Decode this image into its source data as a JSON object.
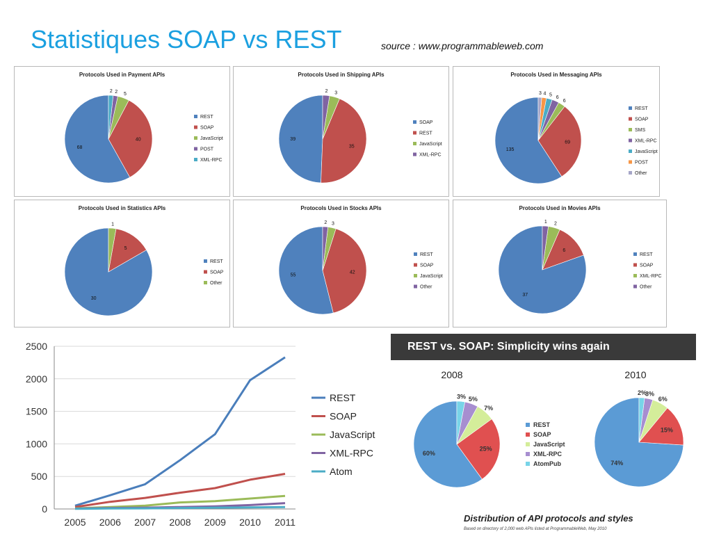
{
  "header": {
    "title": "Statistiques SOAP vs REST",
    "source": "source : www.programmableweb.com"
  },
  "colors": {
    "REST": "#4f81bd",
    "SOAP": "#c0504d",
    "JavaScript": "#9bbb59",
    "POST": "#8064a2",
    "XML-RPC": "#4bacc6",
    "SMS": "#9bbb59",
    "Other": "#a6a6c8",
    "AtomPub": "#4bacc6"
  },
  "banner": {
    "text": "REST vs. SOAP: Simplicity wins again"
  },
  "footer": {
    "caption": "Distribution of API protocols and styles",
    "note": "Based on directory of 2,000 web APIs listed at ProgrammableWeb, May 2010"
  },
  "chart_data": [
    {
      "type": "pie",
      "title": "Protocols Used in Payment APIs",
      "labels": [
        "REST",
        "SOAP",
        "JavaScript",
        "POST",
        "XML-RPC"
      ],
      "values": [
        68,
        40,
        5,
        2,
        2
      ],
      "colors": [
        "#4f81bd",
        "#c0504d",
        "#9bbb59",
        "#8064a2",
        "#4bacc6"
      ]
    },
    {
      "type": "pie",
      "title": "Protocols Used in Shipping APIs",
      "labels": [
        "SOAP",
        "REST",
        "JavaScript",
        "XML-RPC"
      ],
      "values": [
        39,
        35,
        3,
        2
      ],
      "colors": [
        "#4f81bd",
        "#c0504d",
        "#9bbb59",
        "#8064a2"
      ]
    },
    {
      "type": "pie",
      "title": "Protocols Used in Messaging APIs",
      "labels": [
        "REST",
        "SOAP",
        "SMS",
        "XML-RPC",
        "JavaScript",
        "POST",
        "Other"
      ],
      "values": [
        135,
        69,
        6,
        6,
        5,
        4,
        3
      ],
      "colors": [
        "#4f81bd",
        "#c0504d",
        "#9bbb59",
        "#8064a2",
        "#4bacc6",
        "#f79646",
        "#a6a6c8"
      ]
    },
    {
      "type": "pie",
      "title": "Protocols Used in Statistics APIs",
      "labels": [
        "REST",
        "SOAP",
        "Other"
      ],
      "values": [
        30,
        5,
        1
      ],
      "colors": [
        "#4f81bd",
        "#c0504d",
        "#9bbb59"
      ]
    },
    {
      "type": "pie",
      "title": "Protocols Used in Stocks APIs",
      "labels": [
        "REST",
        "SOAP",
        "JavaScript",
        "Other"
      ],
      "values": [
        55,
        42,
        3,
        2
      ],
      "colors": [
        "#4f81bd",
        "#c0504d",
        "#9bbb59",
        "#8064a2"
      ]
    },
    {
      "type": "pie",
      "title": "Protocols Used in Movies APIs",
      "labels": [
        "REST",
        "SOAP",
        "XML-RPC",
        "Other"
      ],
      "values": [
        37,
        6,
        2,
        1
      ],
      "colors": [
        "#4f81bd",
        "#c0504d",
        "#9bbb59",
        "#8064a2"
      ]
    },
    {
      "type": "line",
      "x": [
        2005,
        2006,
        2007,
        2008,
        2009,
        2010,
        2011
      ],
      "series": [
        {
          "name": "REST",
          "color": "#4a7ebb",
          "values": [
            50,
            210,
            380,
            750,
            1150,
            1980,
            2330
          ]
        },
        {
          "name": "SOAP",
          "color": "#c0504d",
          "values": [
            30,
            110,
            170,
            250,
            320,
            450,
            540
          ]
        },
        {
          "name": "JavaScript",
          "color": "#9bbb59",
          "values": [
            10,
            30,
            50,
            100,
            120,
            160,
            200
          ]
        },
        {
          "name": "XML-RPC",
          "color": "#8064a2",
          "values": [
            5,
            15,
            20,
            30,
            40,
            60,
            90
          ]
        },
        {
          "name": "Atom",
          "color": "#4bacc6",
          "values": [
            2,
            8,
            10,
            15,
            20,
            25,
            30
          ]
        }
      ],
      "ylim": [
        0,
        2500
      ],
      "yticks": [
        0,
        500,
        1000,
        1500,
        2000,
        2500
      ],
      "grid": true,
      "legend": "right"
    },
    {
      "type": "pie",
      "title": "2008",
      "labels": [
        "REST",
        "SOAP",
        "JavaScript",
        "XML-RPC",
        "AtomPub"
      ],
      "values": [
        60,
        25,
        7,
        5,
        3
      ],
      "display": [
        "60%",
        "25%",
        "7%",
        "5%",
        "3%"
      ],
      "colors": [
        "#5b9bd5",
        "#e05050",
        "#d4ed9a",
        "#a78ed0",
        "#78d4e8"
      ]
    },
    {
      "type": "pie",
      "title": "2010",
      "labels": [
        "REST",
        "SOAP",
        "JavaScript",
        "XML-RPC",
        "AtomPub"
      ],
      "values": [
        74,
        15,
        6,
        3,
        2
      ],
      "display": [
        "74%",
        "15%",
        "6%",
        "3%",
        "2%"
      ],
      "colors": [
        "#5b9bd5",
        "#e05050",
        "#d4ed9a",
        "#a78ed0",
        "#78d4e8"
      ]
    }
  ]
}
